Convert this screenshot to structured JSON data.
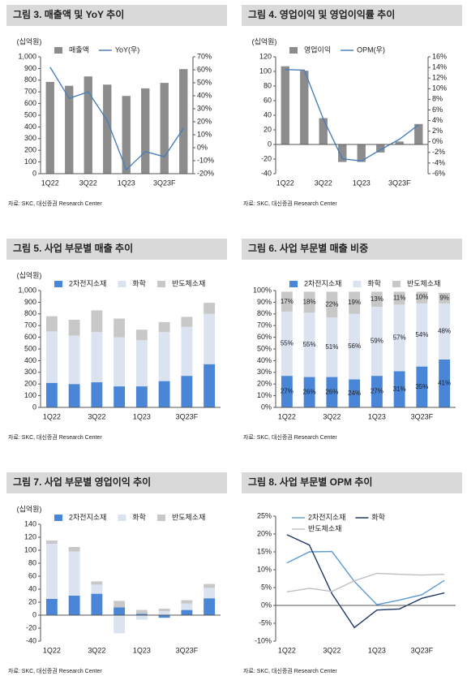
{
  "chart_data": [
    {
      "type": "combo",
      "title": "그림 3. 매출액 및 YoY 추이",
      "unit": "(십억원)",
      "source": "자료: SKC, 대신증권 Research Center",
      "categories": [
        "1Q22",
        null,
        "3Q22",
        null,
        "1Q23",
        null,
        "3Q23F",
        null
      ],
      "series": [
        {
          "name": "매출액",
          "type": "bar",
          "color": "#8c8c8c",
          "values": [
            785,
            752,
            832,
            762,
            665,
            730,
            777,
            895
          ]
        },
        {
          "name": "YoY(우)",
          "type": "line",
          "axis": "y2",
          "color": "#4a7ebb",
          "values": [
            62,
            38,
            43,
            21,
            -17,
            -3,
            -7,
            15
          ]
        }
      ],
      "ylim": [
        0,
        1000
      ],
      "yticks": [
        0,
        100,
        200,
        300,
        400,
        500,
        600,
        700,
        800,
        900,
        {
          "value": 1000,
          "label": "1,000"
        }
      ],
      "y2lim": [
        -20,
        70
      ],
      "y2ticks": [
        {
          "value": -20,
          "label": "-20%"
        },
        {
          "value": -10,
          "label": "-10%"
        },
        {
          "value": 0,
          "label": "0%"
        },
        {
          "value": 10,
          "label": "10%"
        },
        {
          "value": 20,
          "label": "20%"
        },
        {
          "value": 30,
          "label": "30%"
        },
        {
          "value": 40,
          "label": "40%"
        },
        {
          "value": 50,
          "label": "50%"
        },
        {
          "value": 60,
          "label": "60%"
        },
        {
          "value": 70,
          "label": "70%"
        }
      ]
    },
    {
      "type": "combo",
      "title": "그림 4. 영업이익 및 영업이익률 추이",
      "unit": "(십억원)",
      "source": "자료: SKC, 대신증권 Research Center",
      "categories": [
        "1Q22",
        null,
        "3Q22",
        null,
        "1Q23",
        null,
        "3Q23F",
        null
      ],
      "series": [
        {
          "name": "영업이익",
          "type": "bar",
          "color": "#8c8c8c",
          "values": [
            107,
            101,
            36,
            -24,
            -24,
            -11,
            4,
            28
          ]
        },
        {
          "name": "OPM(우)",
          "type": "line",
          "axis": "y2",
          "color": "#4a7ebb",
          "values": [
            13.6,
            13.5,
            4.3,
            -3.2,
            -3.6,
            -1.5,
            0.5,
            3.2
          ]
        }
      ],
      "ylim": [
        -40,
        120
      ],
      "yticks": [
        -40,
        -20,
        0,
        20,
        40,
        60,
        80,
        100,
        120
      ],
      "y2lim": [
        -6,
        16
      ],
      "y2ticks": [
        {
          "value": -6,
          "label": "-6%"
        },
        {
          "value": -4,
          "label": "-4%"
        },
        {
          "value": -2,
          "label": "-2%"
        },
        {
          "value": 0,
          "label": "0%"
        },
        {
          "value": 2,
          "label": "2%"
        },
        {
          "value": 4,
          "label": "4%"
        },
        {
          "value": 6,
          "label": "6%"
        },
        {
          "value": 8,
          "label": "8%"
        },
        {
          "value": 10,
          "label": "10%"
        },
        {
          "value": 12,
          "label": "12%"
        },
        {
          "value": 14,
          "label": "14%"
        },
        {
          "value": 16,
          "label": "16%"
        }
      ]
    },
    {
      "type": "stacked_bar",
      "title": "그림 5. 사업 부문별 매출 추이",
      "unit": "(십억원)",
      "source": "자료: SKC, 대신증권 Research Center",
      "categories": [
        "1Q22",
        null,
        "3Q22",
        null,
        "1Q23",
        null,
        "3Q23F",
        null
      ],
      "series": [
        {
          "name": "2차전지소재",
          "color": "#4a86d8",
          "values": [
            210,
            200,
            215,
            180,
            180,
            225,
            270,
            370
          ]
        },
        {
          "name": "화학",
          "color": "#dbe3f0",
          "values": [
            440,
            415,
            430,
            420,
            395,
            420,
            420,
            430
          ]
        },
        {
          "name": "반도체소재",
          "color": "#c8c8c8",
          "values": [
            130,
            135,
            185,
            160,
            90,
            85,
            85,
            95
          ]
        }
      ],
      "ylim": [
        0,
        1000
      ],
      "yticks": [
        0,
        100,
        200,
        300,
        400,
        500,
        600,
        700,
        800,
        900,
        {
          "value": 1000,
          "label": "1,000"
        }
      ]
    },
    {
      "type": "stacked_bar",
      "title": "그림 6. 사업 부문별 매출 비중",
      "source": "자료: SKC, 대신증권 Research Center",
      "categories": [
        "1Q22",
        null,
        "3Q22",
        null,
        "1Q23",
        null,
        "3Q23F",
        null
      ],
      "series": [
        {
          "name": "2차전지소재",
          "color": "#4a86d8",
          "values": [
            27,
            26,
            26,
            24,
            27,
            31,
            35,
            41
          ],
          "value_labels": [
            "27%",
            "26%",
            "26%",
            "24%",
            "27%",
            "31%",
            "35%",
            "41%"
          ]
        },
        {
          "name": "화학",
          "color": "#dbe3f0",
          "values": [
            55,
            55,
            51,
            56,
            59,
            57,
            54,
            48
          ],
          "value_labels": [
            "55%",
            "55%",
            "51%",
            "56%",
            "59%",
            "57%",
            "54%",
            "48%"
          ]
        },
        {
          "name": "반도체소재",
          "color": "#c8c8c8",
          "values": [
            17,
            18,
            22,
            19,
            13,
            11,
            10,
            9
          ],
          "value_labels": [
            "17%",
            "18%",
            "22%",
            "19%",
            "13%",
            "11%",
            "10%",
            "9%"
          ]
        }
      ],
      "ylim": [
        0,
        100
      ],
      "yticks": [
        {
          "value": 0,
          "label": "0%"
        },
        {
          "value": 10,
          "label": "10%"
        },
        {
          "value": 20,
          "label": "20%"
        },
        {
          "value": 30,
          "label": "30%"
        },
        {
          "value": 40,
          "label": "40%"
        },
        {
          "value": 50,
          "label": "50%"
        },
        {
          "value": 60,
          "label": "60%"
        },
        {
          "value": 70,
          "label": "70%"
        },
        {
          "value": 80,
          "label": "80%"
        },
        {
          "value": 90,
          "label": "90%"
        },
        {
          "value": 100,
          "label": "100%"
        }
      ]
    },
    {
      "type": "stacked_bar",
      "title": "그림 7. 사업 부문별 영업이익 추이",
      "unit": "(십억원)",
      "source": "자료: SKC, 대신증권 Research Center",
      "categories": [
        "1Q22",
        null,
        "3Q22",
        null,
        "1Q23",
        null,
        "3Q23F",
        null
      ],
      "series": [
        {
          "name": "2차전지소재",
          "color": "#4a86d8",
          "values": [
            25,
            30,
            33,
            12,
            2,
            -4,
            8,
            26
          ]
        },
        {
          "name": "화학",
          "color": "#dbe3f0",
          "values": [
            85,
            68,
            14,
            -28,
            -7,
            6,
            10,
            16
          ]
        },
        {
          "name": "반도체소재",
          "color": "#c8c8c8",
          "values": [
            5,
            7,
            5,
            10,
            6,
            4,
            5,
            6
          ]
        }
      ],
      "ylim": [
        -40,
        140
      ],
      "yticks": [
        -40,
        -20,
        0,
        20,
        40,
        60,
        80,
        100,
        120,
        140
      ]
    },
    {
      "type": "line",
      "title": "그림 8. 사업 부문별 OPM 추이",
      "source": "자료: SKC, 대신증권 Research Center",
      "categories": [
        "1Q22",
        null,
        "3Q22",
        null,
        "1Q23",
        null,
        "3Q23F",
        null
      ],
      "series": [
        {
          "name": "2차전지소재",
          "color": "#5b9bd5",
          "values": [
            11.9,
            15.0,
            15.1,
            6.7,
            0.2,
            1.5,
            3.0,
            7.0
          ]
        },
        {
          "name": "화학",
          "color": "#1f3864",
          "values": [
            19.8,
            16.9,
            3.3,
            -6.2,
            -1.3,
            -1.0,
            2.0,
            3.5
          ]
        },
        {
          "name": "반도체소재",
          "color": "#bfbfbf",
          "values": [
            3.8,
            4.8,
            3.9,
            6.9,
            9.0,
            8.7,
            8.5,
            8.7
          ]
        }
      ],
      "ylim": [
        -10,
        25
      ],
      "yticks": [
        {
          "value": -10,
          "label": "-10%"
        },
        {
          "value": -5,
          "label": "-5%"
        },
        {
          "value": 0,
          "label": "0%"
        },
        {
          "value": 5,
          "label": "5%"
        },
        {
          "value": 10,
          "label": "10%"
        },
        {
          "value": 15,
          "label": "15%"
        },
        {
          "value": 20,
          "label": "20%"
        },
        {
          "value": 25,
          "label": "25%"
        }
      ]
    }
  ]
}
